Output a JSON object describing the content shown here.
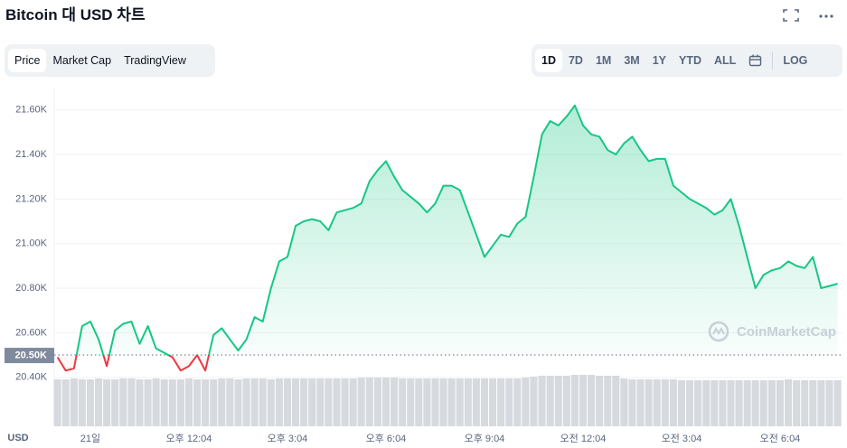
{
  "header": {
    "title": "Bitcoin 대 USD 차트",
    "tabs": [
      "Price",
      "Market Cap",
      "TradingView"
    ],
    "active_tab": 0,
    "ranges": [
      "1D",
      "7D",
      "1M",
      "3M",
      "1Y",
      "YTD",
      "ALL"
    ],
    "active_range": 0,
    "log": "LOG"
  },
  "watermark": "CoinMarketCap",
  "chart_data": {
    "type": "line",
    "categories": [
      null,
      null,
      null,
      null,
      "21일",
      null,
      null,
      null,
      null,
      null,
      null,
      null,
      null,
      null,
      null,
      null,
      "오후 12:04",
      null,
      null,
      null,
      null,
      null,
      null,
      null,
      null,
      null,
      null,
      null,
      "오후 3:04",
      null,
      null,
      null,
      null,
      null,
      null,
      null,
      null,
      null,
      null,
      null,
      "오후 6:04",
      null,
      null,
      null,
      null,
      null,
      null,
      null,
      null,
      null,
      null,
      null,
      "오후 9:04",
      null,
      null,
      null,
      null,
      null,
      null,
      null,
      null,
      null,
      null,
      null,
      "오전 12:04",
      null,
      null,
      null,
      null,
      null,
      null,
      null,
      null,
      null,
      null,
      null,
      "오전 3:04",
      null,
      null,
      null,
      null,
      null,
      null,
      null,
      null,
      null,
      null,
      null,
      "오전 6:04",
      null,
      null,
      null,
      null,
      null,
      null,
      null
    ],
    "values": [
      20490,
      20430,
      20440,
      20630,
      20650,
      20570,
      20450,
      20610,
      20640,
      20650,
      20550,
      20630,
      20530,
      20510,
      20490,
      20430,
      20450,
      20500,
      20430,
      20590,
      20620,
      20570,
      20520,
      20570,
      20670,
      20650,
      20800,
      20920,
      20940,
      21080,
      21100,
      21110,
      21100,
      21060,
      21140,
      21150,
      21160,
      21180,
      21280,
      21330,
      21370,
      21300,
      21240,
      21210,
      21180,
      21140,
      21180,
      21260,
      21260,
      21240,
      21140,
      21040,
      20940,
      20990,
      21040,
      21030,
      21090,
      21120,
      21300,
      21490,
      21550,
      21530,
      21570,
      21620,
      21530,
      21490,
      21480,
      21420,
      21400,
      21450,
      21480,
      21420,
      21370,
      21380,
      21380,
      21260,
      21230,
      21200,
      21180,
      21160,
      21130,
      21150,
      21200,
      21080,
      20940,
      20800,
      20860,
      20880,
      20890,
      20920,
      20900,
      20890,
      20940,
      20800,
      20810,
      20820
    ],
    "color_up": "#16c784",
    "color_down": "#ea3943",
    "baseline": {
      "value": 20500,
      "label": "20.50K"
    },
    "volume": {
      "color": "#d6d9de",
      "values": [
        52,
        52,
        53,
        52,
        52,
        53,
        52,
        52,
        53,
        53,
        52,
        52,
        53,
        52,
        52,
        52,
        53,
        52,
        52,
        52,
        53,
        53,
        52,
        53,
        53,
        53,
        52,
        53,
        53,
        53,
        53,
        53,
        53,
        53,
        53,
        53,
        53,
        54,
        54,
        54,
        54,
        54,
        53,
        53,
        53,
        53,
        53,
        53,
        53,
        53,
        53,
        53,
        53,
        53,
        53,
        53,
        53,
        54,
        55,
        56,
        56,
        56,
        56,
        57,
        57,
        57,
        56,
        56,
        56,
        53,
        52,
        52,
        52,
        52,
        52,
        52,
        51,
        51,
        51,
        51,
        51,
        51,
        51,
        51,
        51,
        51,
        51,
        51,
        51,
        52,
        51,
        51,
        51,
        51,
        51,
        51
      ]
    },
    "y2lim": [
      0,
      100
    ],
    "ylim": [
      20180,
      21700
    ],
    "yticks": [
      {
        "value": 20400,
        "label": "20.40K"
      },
      {
        "value": 20600,
        "label": "20.60K"
      },
      {
        "value": 20800,
        "label": "20.80K"
      },
      {
        "value": 21000,
        "label": "21.00K"
      },
      {
        "value": 21200,
        "label": "21.20K"
      },
      {
        "value": 21400,
        "label": "21.40K"
      },
      {
        "value": 21600,
        "label": "21.60K"
      }
    ],
    "yunit": "USD",
    "grid": true
  }
}
